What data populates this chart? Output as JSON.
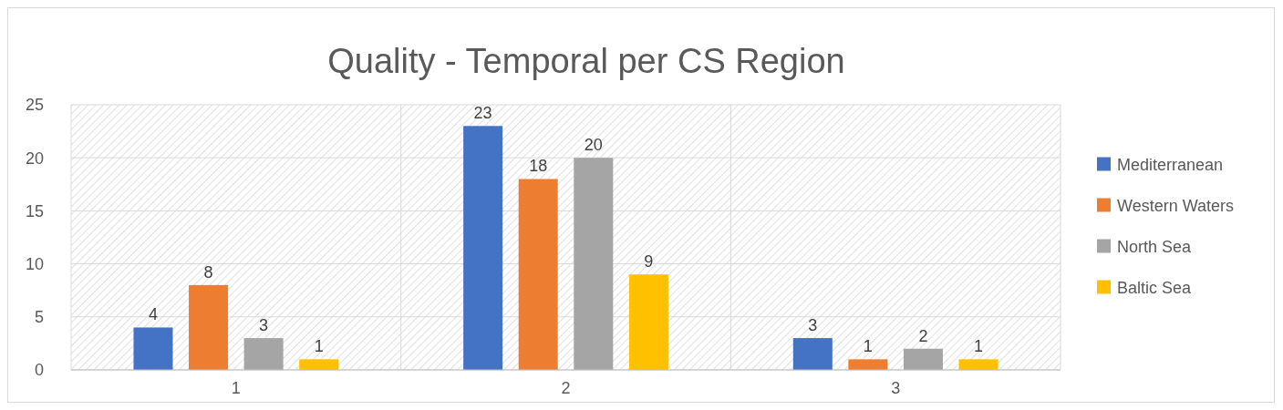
{
  "chart_data": {
    "type": "bar",
    "title": "Quality - Temporal per CS Region",
    "categories": [
      "1",
      "2",
      "3"
    ],
    "series": [
      {
        "name": "Mediterranean",
        "color": "#4472c4",
        "values": [
          4,
          23,
          3
        ]
      },
      {
        "name": "Western Waters",
        "color": "#ed7d31",
        "values": [
          8,
          18,
          1
        ]
      },
      {
        "name": "North Sea",
        "color": "#a5a5a5",
        "values": [
          3,
          20,
          2
        ]
      },
      {
        "name": "Baltic Sea",
        "color": "#ffc000",
        "values": [
          1,
          9,
          1
        ]
      }
    ],
    "ylim": [
      0,
      25
    ],
    "yticks": [
      0,
      5,
      10,
      15,
      20,
      25
    ],
    "grid": true,
    "legend": "right",
    "data_labels": true
  }
}
